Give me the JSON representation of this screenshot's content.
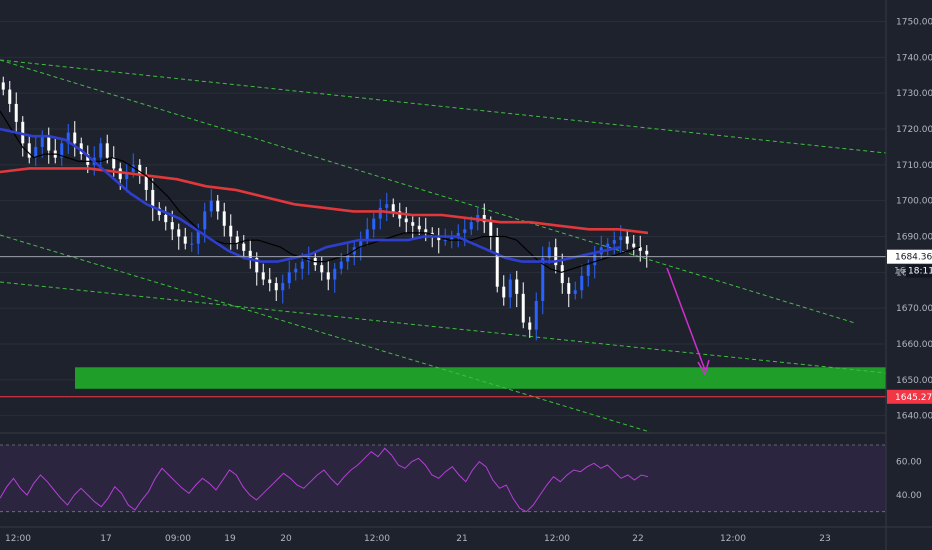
{
  "chart_data": {
    "type": "candlestick",
    "price_axis": {
      "ylim": [
        1636,
        1756
      ],
      "ticks": [
        "1750.000",
        "1740.000",
        "1730.000",
        "1720.000",
        "1710.000",
        "1700.000",
        "1690.000",
        "1680.000",
        "1670.000",
        "1660.000",
        "1650.000",
        "1640.000"
      ],
      "tick_values": [
        1750,
        1740,
        1730,
        1720,
        1710,
        1700,
        1690,
        1680,
        1670,
        1660,
        1650,
        1640
      ]
    },
    "time_axis": {
      "labels": [
        "12:00",
        "17",
        "09:00",
        "19",
        "20",
        "12:00",
        "21",
        "12:00",
        "22",
        "12:00",
        "23"
      ],
      "positions": [
        0.0,
        0.12,
        0.2,
        0.26,
        0.32,
        0.42,
        0.52,
        0.62,
        0.72,
        0.82,
        0.92
      ]
    },
    "current_price": {
      "value": 1684.362,
      "label": "1684.362",
      "countdown": "18:11",
      "partial_label": "16"
    },
    "level": {
      "value": 1645.271,
      "label": "1645.271",
      "color": "#f23645"
    },
    "support_zone": {
      "low": 1647.5,
      "high": 1653.5,
      "color": "#1f9e2a"
    },
    "candles": [
      1731,
      1727,
      1722,
      1716,
      1712,
      1715,
      1718,
      1714,
      1712,
      1716,
      1719,
      1716,
      1713,
      1710,
      1712,
      1716,
      1712,
      1709,
      1706,
      1708,
      1710,
      1707,
      1703,
      1698,
      1696,
      1694,
      1692,
      1690,
      1688,
      1688,
      1692,
      1697,
      1700,
      1697,
      1693,
      1690,
      1688,
      1686,
      1684,
      1680,
      1678,
      1677,
      1675,
      1677,
      1680,
      1681,
      1683,
      1684,
      1682,
      1680,
      1678,
      1681,
      1683,
      1685,
      1687,
      1689,
      1692,
      1695,
      1698,
      1699,
      1697,
      1695,
      1694,
      1693,
      1692,
      1691,
      1690,
      1689,
      1689,
      1690,
      1691,
      1692,
      1694,
      1696,
      1694,
      1690,
      1676,
      1673,
      1678,
      1674,
      1666,
      1664,
      1672,
      1684,
      1687,
      1682,
      1677,
      1674,
      1675,
      1679,
      1682,
      1685,
      1687,
      1688,
      1689,
      1690,
      1688,
      1687,
      1686,
      1685
    ],
    "ema_black": [
      1725,
      1720,
      1715,
      1712,
      1713,
      1713,
      1712,
      1711,
      1711,
      1711,
      1712,
      1711,
      1709,
      1707,
      1704,
      1701,
      1697,
      1694,
      1691,
      1689,
      1688,
      1688,
      1689,
      1689,
      1688,
      1687,
      1685,
      1684,
      1683,
      1683,
      1684,
      1685,
      1687,
      1688,
      1689,
      1690,
      1691,
      1691,
      1691,
      1690,
      1689,
      1689,
      1689,
      1690,
      1690,
      1690,
      1689,
      1686,
      1683,
      1681,
      1680,
      1681,
      1682,
      1683,
      1684,
      1685,
      1686,
      1687
    ],
    "ema_blue": [
      1720,
      1719,
      1718,
      1718,
      1717,
      1714,
      1710,
      1706,
      1702,
      1699,
      1697,
      1695,
      1692,
      1689,
      1686,
      1684,
      1683,
      1683,
      1684,
      1685,
      1687,
      1688,
      1689,
      1689,
      1689,
      1689,
      1690,
      1690,
      1690,
      1688,
      1686,
      1684,
      1683,
      1683,
      1683,
      1684,
      1685,
      1686,
      1687
    ],
    "ema_red": [
      1708,
      1709,
      1709,
      1709,
      1708,
      1707,
      1706,
      1704,
      1703,
      1701,
      1699,
      1698,
      1697,
      1697,
      1696,
      1696,
      1695,
      1694,
      1694,
      1693,
      1692,
      1692,
      1691
    ],
    "rsi": {
      "ylim": [
        25,
        76
      ],
      "ticks": [
        "60.00",
        "40.00"
      ],
      "tick_values": [
        60,
        40
      ],
      "levels": [
        70,
        30
      ],
      "values": [
        38,
        45,
        50,
        44,
        40,
        47,
        52,
        48,
        43,
        38,
        34,
        40,
        44,
        40,
        36,
        33,
        38,
        45,
        41,
        34,
        31,
        37,
        42,
        50,
        56,
        52,
        48,
        44,
        41,
        46,
        50,
        47,
        43,
        49,
        55,
        52,
        45,
        40,
        37,
        41,
        45,
        49,
        53,
        50,
        46,
        44,
        48,
        52,
        55,
        50,
        46,
        51,
        55,
        58,
        62,
        66,
        63,
        68,
        64,
        58,
        56,
        60,
        62,
        58,
        52,
        50,
        54,
        57,
        52,
        48,
        55,
        60,
        57,
        49,
        44,
        46,
        38,
        32,
        30,
        34,
        40,
        46,
        51,
        48,
        52,
        55,
        54,
        57,
        59,
        56,
        58,
        54,
        50,
        52,
        49,
        52,
        51
      ]
    },
    "colors": {
      "bg": "#1e222d",
      "candle_up": "#2962ff",
      "candle_down": "#ffffff",
      "ema_black": "#000000",
      "ema_blue": "#2e3fcf",
      "ema_red": "#e0383b",
      "trend": "#3fbf3f",
      "arrow": "#d02fd0",
      "rsi_line": "#b53fd6",
      "rsi_band": "#2b2540"
    }
  }
}
